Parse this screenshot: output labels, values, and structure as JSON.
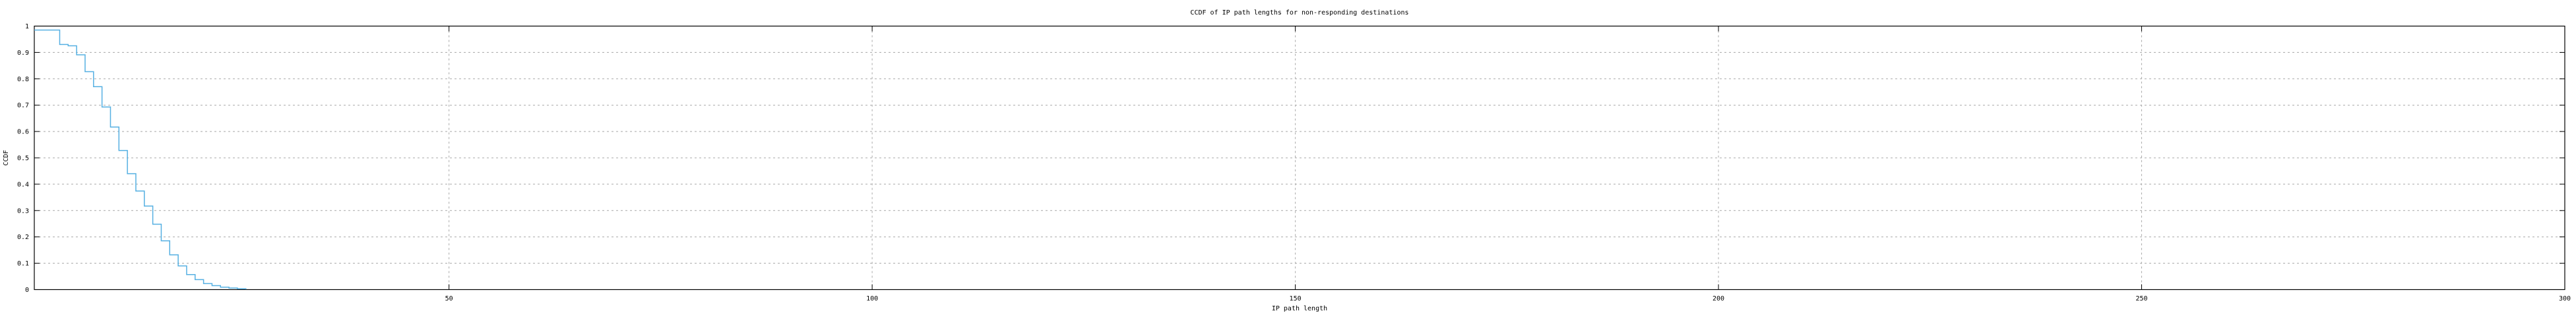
{
  "chart_data": {
    "type": "line",
    "style": "step-post",
    "title": "CCDF of IP path lengths for non-responding destinations",
    "xlabel": "IP path length",
    "ylabel": "CCDF",
    "xlim": [
      1,
      300
    ],
    "ylim": [
      0,
      1
    ],
    "x_ticks": [
      50,
      100,
      150,
      200,
      250,
      300
    ],
    "x_tick_labels": [
      "50",
      "100",
      "150",
      "200",
      "250",
      "300"
    ],
    "y_ticks": [
      0,
      0.1,
      0.2,
      0.3,
      0.4,
      0.5,
      0.6,
      0.7,
      0.8,
      0.9,
      1
    ],
    "y_tick_labels": [
      "0",
      "0.1",
      "0.2",
      "0.3",
      "0.4",
      "0.5",
      "0.6",
      "0.7",
      "0.8",
      "0.9",
      "1"
    ],
    "grid": true,
    "grid_style": "dashed",
    "legend": "none",
    "colors": {
      "line": "#56b0e2",
      "grid": "#a8a8a8",
      "axis": "#000000",
      "background": "#ffffff"
    },
    "series": [
      {
        "name": "CCDF of IP path lengths",
        "step_mode": "post",
        "points": [
          [
            1,
            0.985
          ],
          [
            4,
            0.93
          ],
          [
            5,
            0.925
          ],
          [
            6,
            0.891
          ],
          [
            7,
            0.827
          ],
          [
            8,
            0.77
          ],
          [
            9,
            0.693
          ],
          [
            10,
            0.617
          ],
          [
            11,
            0.528
          ],
          [
            12,
            0.44
          ],
          [
            13,
            0.374
          ],
          [
            14,
            0.317
          ],
          [
            15,
            0.248
          ],
          [
            16,
            0.185
          ],
          [
            17,
            0.132
          ],
          [
            18,
            0.09
          ],
          [
            19,
            0.057
          ],
          [
            20,
            0.038
          ],
          [
            21,
            0.023
          ],
          [
            22,
            0.015
          ],
          [
            23,
            0.009
          ],
          [
            24,
            0.006
          ],
          [
            25,
            0.003
          ],
          [
            26,
            0.001
          ]
        ]
      }
    ]
  }
}
